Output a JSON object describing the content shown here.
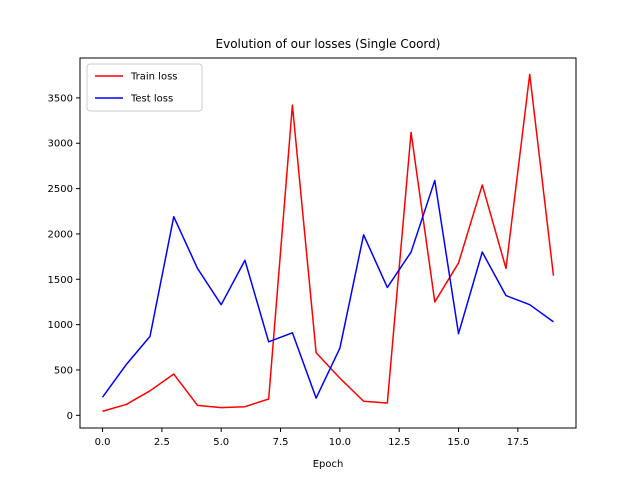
{
  "chart_data": {
    "type": "line",
    "title": "Evolution of our losses (Single Coord)",
    "xlabel": "Epoch",
    "ylabel": "",
    "x": [
      0,
      1,
      2,
      3,
      4,
      5,
      6,
      7,
      8,
      9,
      10,
      11,
      12,
      13,
      14,
      15,
      16,
      17,
      18,
      19
    ],
    "xlim": [
      -0.95,
      19.95
    ],
    "ylim": [
      -140,
      3940
    ],
    "xticks": [
      0,
      2.5,
      5,
      7.5,
      10,
      12.5,
      15,
      17.5
    ],
    "xtick_labels": [
      "0.0",
      "2.5",
      "5.0",
      "7.5",
      "10.0",
      "12.5",
      "15.0",
      "17.5"
    ],
    "yticks": [
      0,
      500,
      1000,
      1500,
      2000,
      2500,
      3000,
      3500
    ],
    "ytick_labels": [
      "0",
      "500",
      "1000",
      "1500",
      "2000",
      "2500",
      "3000",
      "3500"
    ],
    "grid": false,
    "legend_position": "top-left",
    "series": [
      {
        "name": "Train loss",
        "color": "#ff0000",
        "values": [
          45,
          120,
          270,
          455,
          110,
          85,
          95,
          180,
          3420,
          690,
          410,
          155,
          135,
          3120,
          1250,
          1680,
          2540,
          1620,
          3760,
          1540
        ]
      },
      {
        "name": "Test loss",
        "color": "#0000ff",
        "values": [
          200,
          560,
          870,
          2190,
          1620,
          1220,
          1710,
          810,
          910,
          190,
          740,
          1990,
          1410,
          1800,
          2590,
          900,
          1800,
          1320,
          1220,
          1030
        ]
      }
    ]
  }
}
